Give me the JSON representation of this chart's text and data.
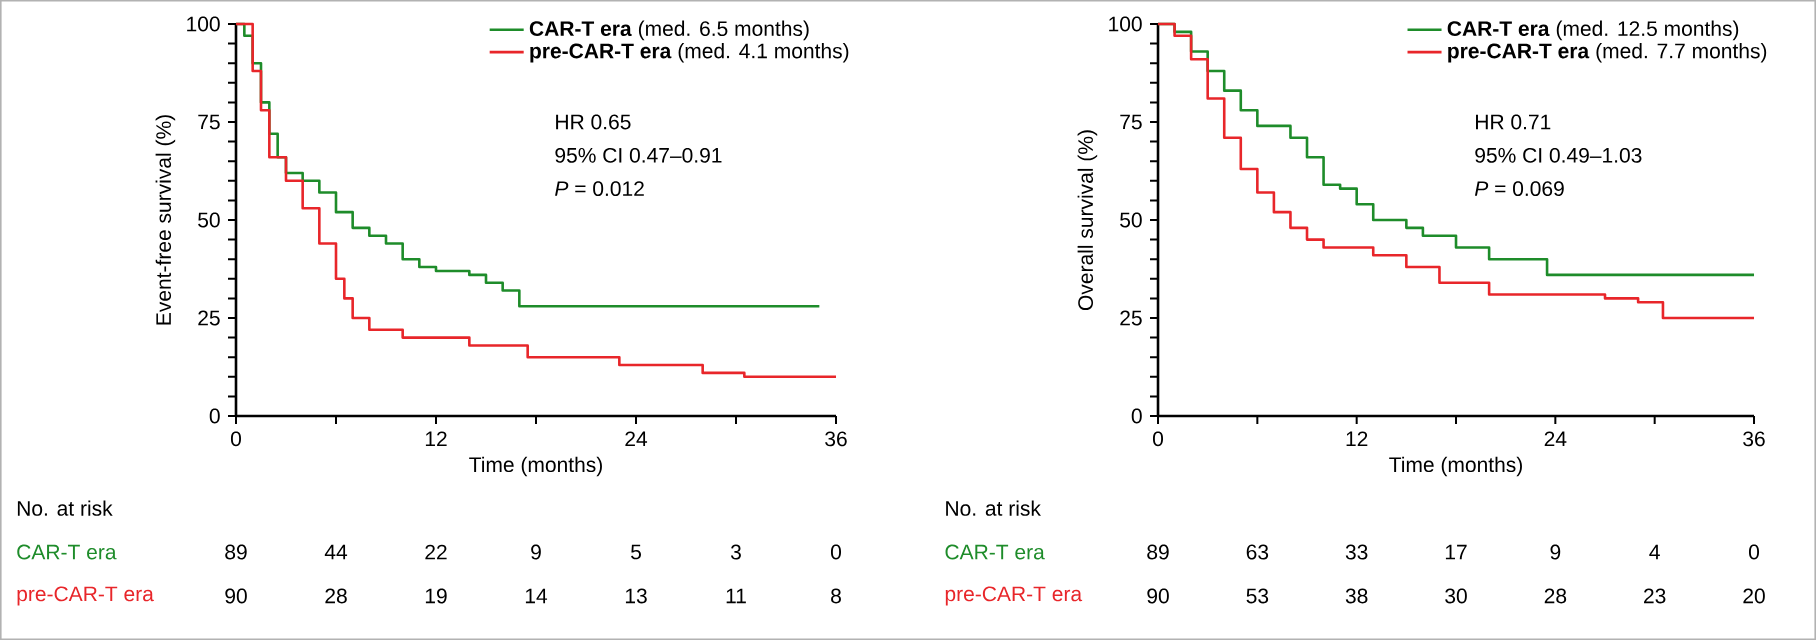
{
  "chart_data": [
    {
      "type": "step",
      "xlabel": "Time (months)",
      "ylabel": "Event-free survival (%)",
      "xlim": [
        0,
        36
      ],
      "ylim": [
        0,
        100
      ],
      "xticks": [
        0,
        {
          "value": 6,
          "label": null
        },
        12,
        {
          "value": 18,
          "label": null
        },
        24,
        {
          "value": 30,
          "label": null
        },
        36
      ],
      "yticks": [
        0,
        {
          "value": 5,
          "label": null
        },
        {
          "value": 10,
          "label": null
        },
        {
          "value": 15,
          "label": null
        },
        {
          "value": 20,
          "label": null
        },
        25,
        {
          "value": 30,
          "label": null
        },
        {
          "value": 35,
          "label": null
        },
        {
          "value": 40,
          "label": null
        },
        {
          "value": 45,
          "label": null
        },
        50,
        {
          "value": 55,
          "label": null
        },
        {
          "value": 60,
          "label": null
        },
        {
          "value": 65,
          "label": null
        },
        {
          "value": 70,
          "label": null
        },
        75,
        {
          "value": 80,
          "label": null
        },
        {
          "value": 85,
          "label": null
        },
        {
          "value": 90,
          "label": null
        },
        {
          "value": 95,
          "label": null
        },
        100
      ],
      "legend": "top right",
      "grid": false,
      "series": [
        {
          "name": "**CAR-T era** (med. 6.5 months)",
          "color": "#1e8c2a",
          "x": [
            0,
            0.5,
            1,
            1.5,
            2,
            2.5,
            3,
            4,
            5,
            6,
            7,
            8,
            9,
            10,
            11,
            12,
            14,
            15,
            16,
            17,
            35
          ],
          "values": [
            100,
            97,
            90,
            80,
            72,
            66,
            62,
            60,
            57,
            52,
            48,
            46,
            44,
            40,
            38,
            37,
            36,
            34,
            32,
            28,
            28
          ]
        },
        {
          "name": "**pre-CAR-T era** (med. 4.1 months)",
          "color": "#e8262a",
          "x": [
            0,
            1,
            1.5,
            2,
            3,
            4,
            5,
            6,
            6.5,
            7,
            8,
            10,
            14,
            17.5,
            23,
            28,
            30.5,
            36
          ],
          "values": [
            100,
            88,
            78,
            66,
            60,
            53,
            44,
            35,
            30,
            25,
            22,
            20,
            18,
            15,
            13,
            11,
            10,
            10
          ]
        }
      ],
      "annotations": [
        "HR 0.65",
        "95% CI 0.47–0.91",
        "*P* = 0.012",
        "No. at risk",
        "CAR-T era",
        "89",
        "44",
        "22",
        "9",
        "5",
        "3",
        "0",
        "pre-CAR-T era",
        "90",
        "28",
        "19",
        "14",
        "13",
        "11",
        "8"
      ]
    },
    {
      "type": "step",
      "xlabel": "Time (months)",
      "ylabel": "Overall survival (%)",
      "xlim": [
        0,
        36
      ],
      "ylim": [
        0,
        100
      ],
      "xticks": [
        0,
        {
          "value": 6,
          "label": null
        },
        12,
        {
          "value": 18,
          "label": null
        },
        24,
        {
          "value": 30,
          "label": null
        },
        36
      ],
      "yticks": [
        0,
        {
          "value": 5,
          "label": null
        },
        {
          "value": 10,
          "label": null
        },
        {
          "value": 15,
          "label": null
        },
        {
          "value": 20,
          "label": null
        },
        25,
        {
          "value": 30,
          "label": null
        },
        {
          "value": 35,
          "label": null
        },
        {
          "value": 40,
          "label": null
        },
        {
          "value": 45,
          "label": null
        },
        50,
        {
          "value": 55,
          "label": null
        },
        {
          "value": 60,
          "label": null
        },
        {
          "value": 65,
          "label": null
        },
        {
          "value": 70,
          "label": null
        },
        75,
        {
          "value": 80,
          "label": null
        },
        {
          "value": 85,
          "label": null
        },
        {
          "value": 90,
          "label": null
        },
        {
          "value": 95,
          "label": null
        },
        100
      ],
      "legend": "top right",
      "grid": false,
      "series": [
        {
          "name": "**CAR-T era** (med. 12.5 months)",
          "color": "#1e8c2a",
          "x": [
            0,
            1,
            2,
            3,
            4,
            5,
            6,
            8,
            9,
            10,
            11,
            12,
            13,
            15,
            16,
            18,
            20,
            23.5,
            36
          ],
          "values": [
            100,
            98,
            93,
            88,
            83,
            78,
            74,
            71,
            66,
            59,
            58,
            54,
            50,
            48,
            46,
            43,
            40,
            36,
            36
          ]
        },
        {
          "name": "**pre-CAR-T era** (med. 7.7 months)",
          "color": "#e8262a",
          "x": [
            0,
            1,
            2,
            3,
            4,
            5,
            6,
            7,
            8,
            9,
            10,
            13,
            15,
            17,
            20,
            27,
            29,
            30.5,
            36
          ],
          "values": [
            100,
            97,
            91,
            81,
            71,
            63,
            57,
            52,
            48,
            45,
            43,
            41,
            38,
            34,
            31,
            30,
            29,
            25,
            25
          ]
        }
      ],
      "annotations": [
        "HR 0.71",
        "95% CI 0.49–1.03",
        "*P* = 0.069",
        "No. at risk",
        "CAR-T era",
        "89",
        "63",
        "33",
        "17",
        "9",
        "4",
        "0",
        "pre-CAR-T era",
        "90",
        "53",
        "38",
        "30",
        "28",
        "23",
        "20"
      ]
    }
  ]
}
